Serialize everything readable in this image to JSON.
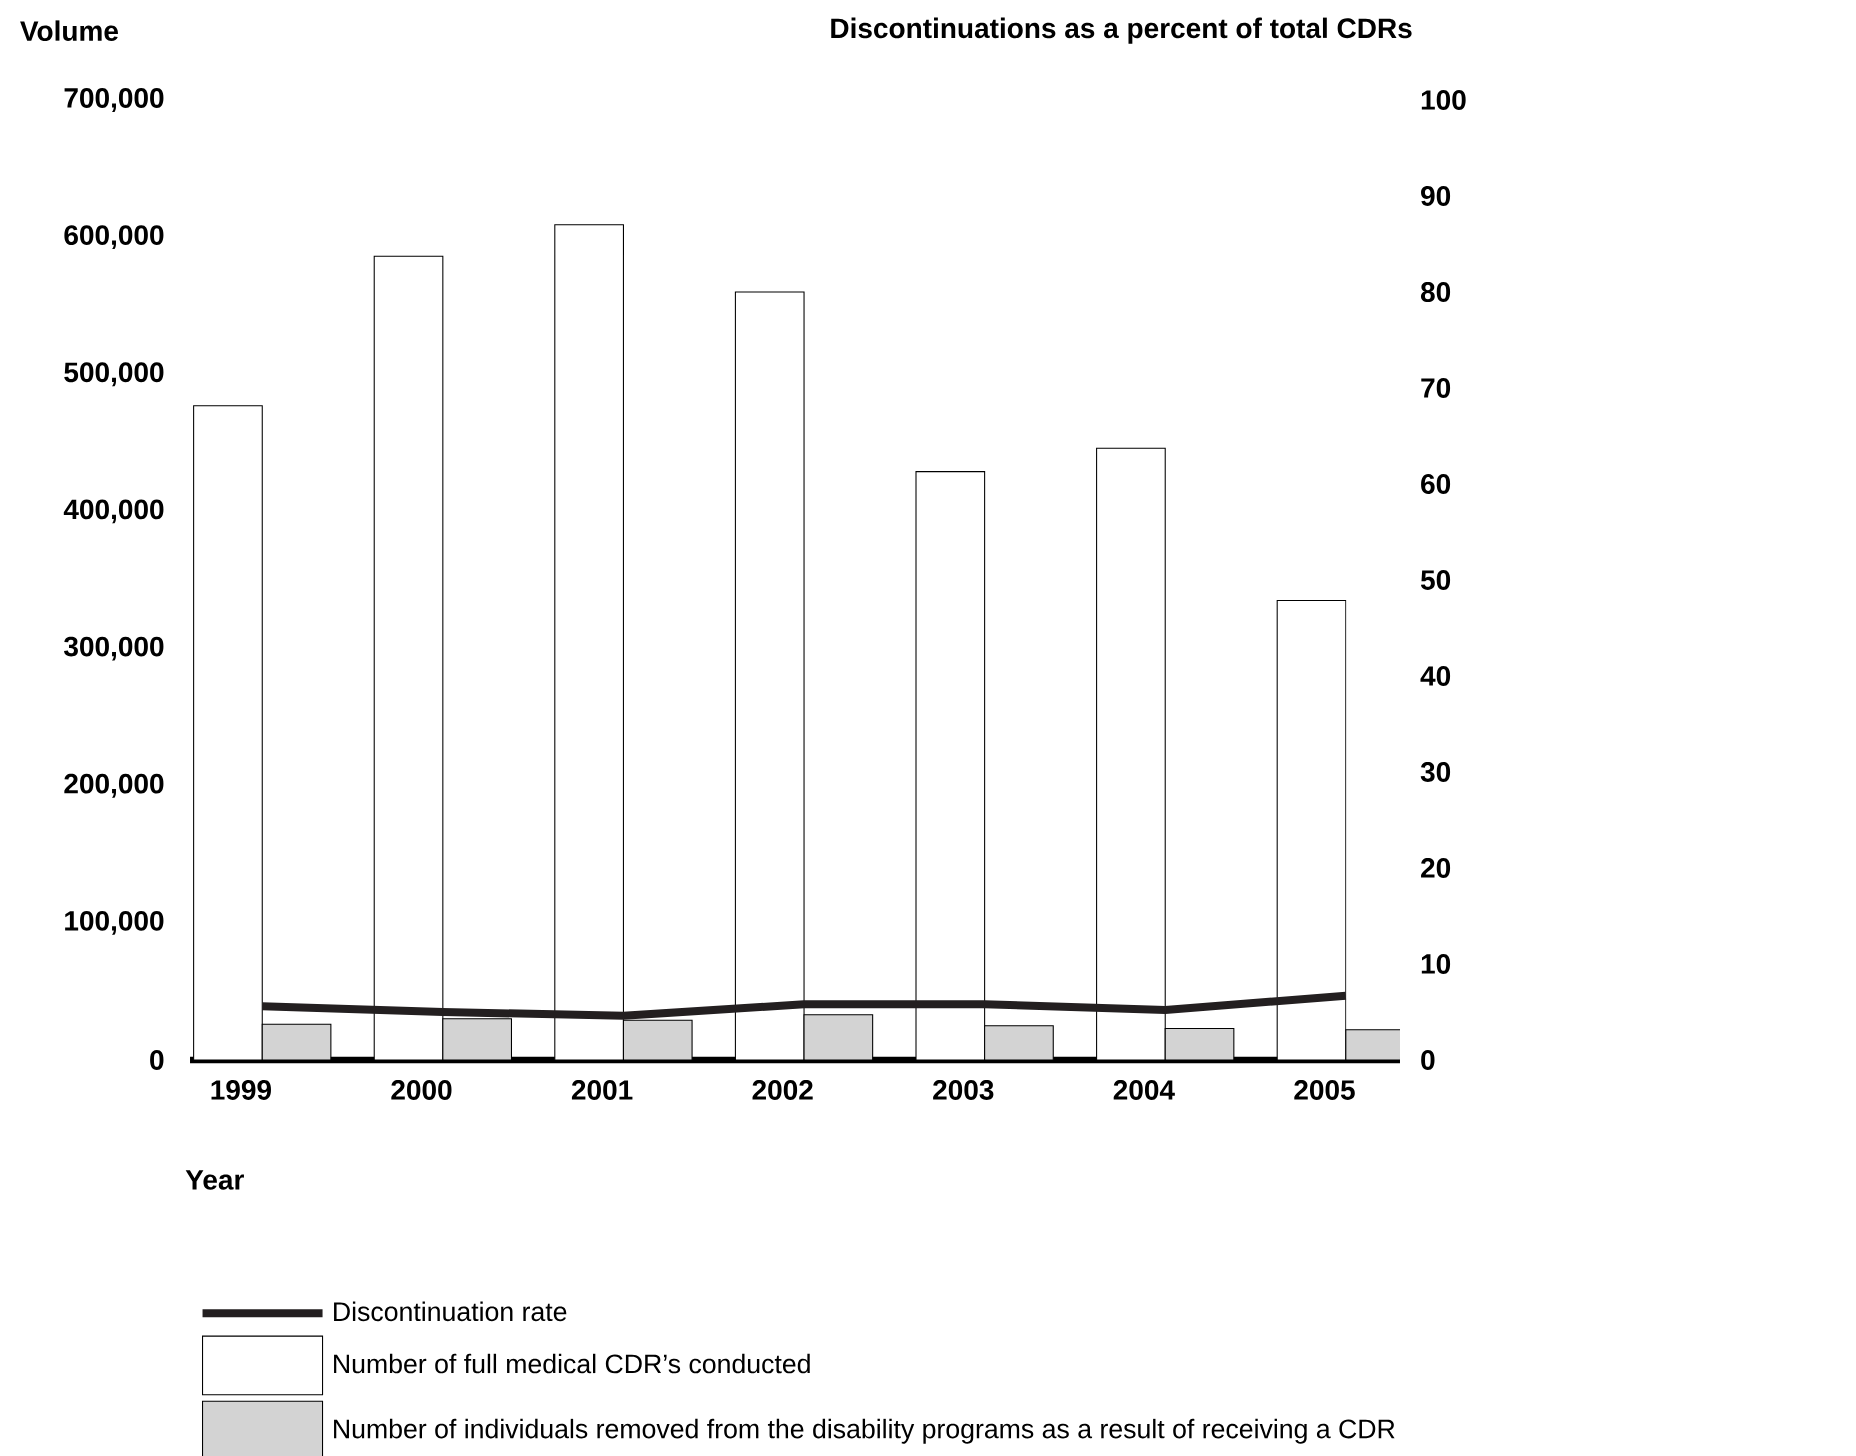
{
  "chart_data": {
    "type": "bar",
    "xlabel": "Year",
    "ylabel": "Volume",
    "y2label": "Discontinuations as a percent of total CDRs",
    "categories": [
      "1999",
      "2000",
      "2001",
      "2002",
      "2003",
      "2004",
      "2005"
    ],
    "series": [
      {
        "name": "Number of full medical CDR’s conducted",
        "color": "#ffffff",
        "values": [
          477000,
          586000,
          609000,
          560000,
          429000,
          446000,
          335000
        ]
      },
      {
        "name": "Number of individuals removed from the disability programs as a result of receiving a CDR",
        "color": "#d3d3d3",
        "values": [
          26000,
          30000,
          29000,
          33000,
          25000,
          23000,
          22000
        ]
      },
      {
        "name": "Discontinuation rate",
        "type": "line",
        "axis": "y2",
        "color": "#231f20",
        "values": [
          5.6,
          5.0,
          4.6,
          5.8,
          5.8,
          5.2,
          6.7
        ]
      }
    ],
    "ylim": [
      0,
      700000
    ],
    "yticks": [
      0,
      {
        "value": 100000,
        "label": "100,000"
      },
      {
        "value": 200000,
        "label": "200,000"
      },
      {
        "value": 300000,
        "label": "300,000"
      },
      {
        "value": 400000,
        "label": "400,000"
      },
      {
        "value": 500000,
        "label": "500,000"
      },
      {
        "value": 600000,
        "label": "600,000"
      },
      {
        "value": 700000,
        "label": "700,000"
      }
    ],
    "y2lim": [
      0,
      100
    ],
    "y2ticks": [
      0,
      10,
      20,
      30,
      40,
      50,
      60,
      70,
      80,
      90,
      100
    ],
    "legend": "bottom",
    "marker": "none",
    "line_style": "solid",
    "grid": false
  }
}
